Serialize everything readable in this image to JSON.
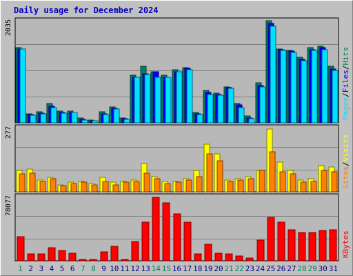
{
  "title": "Daily usage for December 2024",
  "colors": {
    "hits": "#00805c",
    "files": "#0000ff",
    "pages": "#00e0ff",
    "visits": "#ffff00",
    "sites": "#ff8000",
    "kbytes": "#ff0000",
    "weekday_label": "#000080",
    "weekend_label": "#00805c",
    "title": "#0000c0"
  },
  "chart_data": {
    "type": "bar",
    "categories": [
      "1",
      "2",
      "3",
      "4",
      "5",
      "6",
      "7",
      "8",
      "9",
      "10",
      "11",
      "12",
      "13",
      "14",
      "15",
      "16",
      "17",
      "18",
      "19",
      "20",
      "21",
      "22",
      "23",
      "24",
      "25",
      "26",
      "27",
      "28",
      "29",
      "30",
      "31"
    ],
    "weekend_days": [
      "1",
      "7",
      "8",
      "14",
      "15",
      "21",
      "22",
      "28",
      "29"
    ],
    "panels": [
      {
        "id": "hits-files-pages",
        "ymax_label": "2035",
        "ylim": [
          0,
          2035
        ],
        "legend": [
          "Pages",
          "/",
          "Files",
          "/",
          "Hits"
        ],
        "series": [
          {
            "name": "Hits",
            "values": [
              1480,
              170,
              220,
              380,
              230,
              230,
              90,
              60,
              220,
              310,
              90,
              940,
              1110,
              1010,
              930,
              1050,
              1080,
              200,
              640,
              580,
              710,
              380,
              140,
              790,
              2010,
              1450,
              1430,
              1290,
              1480,
              1500,
              1110
            ]
          },
          {
            "name": "Files",
            "values": [
              1450,
              160,
              190,
              330,
              200,
              210,
              70,
              45,
              170,
              280,
              80,
              900,
              960,
              1000,
              900,
              1010,
              1070,
              180,
              600,
              550,
              690,
              350,
              100,
              730,
              1950,
              1440,
              1410,
              1250,
              1440,
              1480,
              1060
            ]
          },
          {
            "name": "Pages",
            "values": [
              1450,
              150,
              180,
              300,
              190,
              200,
              60,
              40,
              160,
              270,
              70,
              890,
              950,
              900,
              900,
              1000,
              1050,
              160,
              560,
              540,
              680,
              300,
              80,
              700,
              1900,
              1420,
              1390,
              1220,
              1420,
              1440,
              1030
            ]
          }
        ]
      },
      {
        "id": "visits-sites",
        "ymax_label": "277",
        "ylim": [
          0,
          277
        ],
        "legend": [
          "Sites",
          "/",
          "Visits"
        ],
        "series": [
          {
            "name": "Visits",
            "values": [
              90,
              95,
              50,
              60,
              30,
              40,
              45,
              35,
              60,
              40,
              45,
              50,
              120,
              65,
              45,
              45,
              55,
              90,
              200,
              160,
              50,
              55,
              65,
              90,
              265,
              125,
              90,
              50,
              55,
              110,
              105
            ]
          },
          {
            "name": "Sites",
            "values": [
              75,
              80,
              45,
              55,
              25,
              35,
              40,
              30,
              45,
              30,
              40,
              45,
              80,
              55,
              35,
              40,
              50,
              65,
              160,
              130,
              45,
              50,
              55,
              90,
              170,
              85,
              75,
              40,
              45,
              90,
              85
            ]
          }
        ]
      },
      {
        "id": "kbytes",
        "ymax_label": "78077",
        "ylim": [
          0,
          78077
        ],
        "legend": [
          "KBytes"
        ],
        "series": [
          {
            "name": "KBytes",
            "values": [
              29000,
              8000,
              8000,
              16000,
              12000,
              9000,
              2000,
              1500,
              11000,
              17000,
              2000,
              23000,
              46000,
              76000,
              69000,
              56000,
              46000,
              8000,
              20000,
              9000,
              8000,
              6000,
              3000,
              25000,
              52000,
              46000,
              37000,
              34000,
              34000,
              36000,
              37000
            ]
          }
        ]
      }
    ]
  }
}
